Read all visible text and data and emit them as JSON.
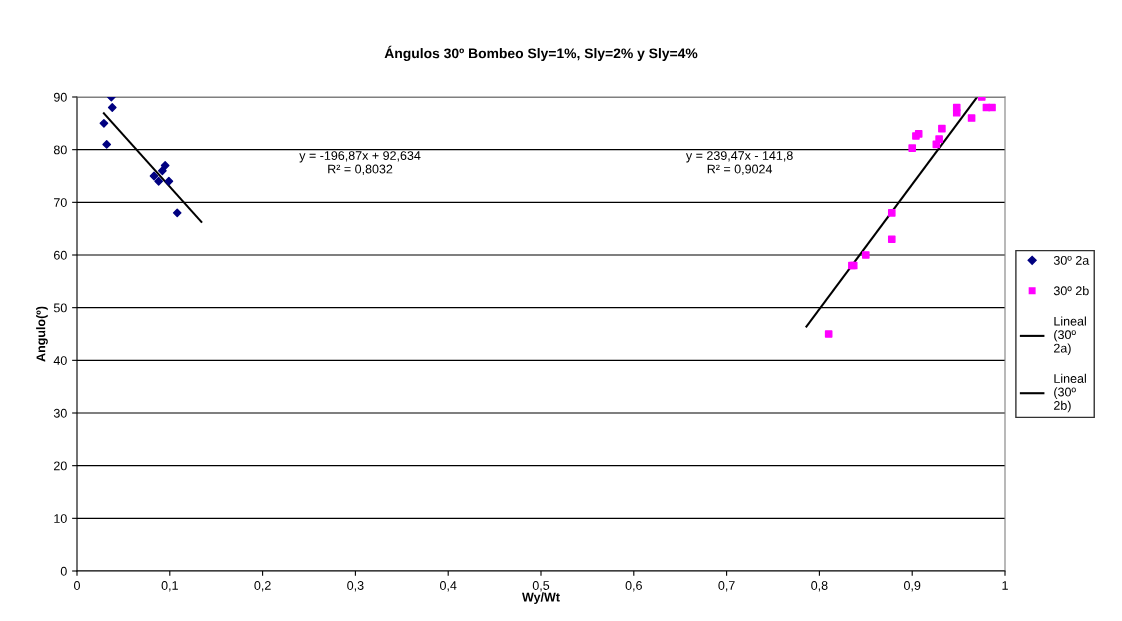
{
  "chart_data": {
    "type": "scatter",
    "title": "Ángulos 30º Bombeo Sly=1%, Sly=2% y Sly=4%",
    "xlabel": "Wy/Wt",
    "ylabel": "Angulo(º)",
    "xlim": [
      0,
      1
    ],
    "xticks": [
      {
        "value": 0,
        "label": "0"
      },
      {
        "value": 0.1,
        "label": "0,1"
      },
      {
        "value": 0.2,
        "label": "0,2"
      },
      {
        "value": 0.3,
        "label": "0,3"
      },
      {
        "value": 0.4,
        "label": "0,4"
      },
      {
        "value": 0.5,
        "label": "0,5"
      },
      {
        "value": 0.6,
        "label": "0,6"
      },
      {
        "value": 0.7,
        "label": "0,7"
      },
      {
        "value": 0.8,
        "label": "0,8"
      },
      {
        "value": 0.9,
        "label": "0,9"
      },
      {
        "value": 1,
        "label": "1"
      }
    ],
    "ylim": [
      0,
      90
    ],
    "yticks": [
      0,
      10,
      20,
      30,
      40,
      50,
      60,
      70,
      80,
      90
    ],
    "grid": "y",
    "legend": "right",
    "series": [
      {
        "name": "30º 2a",
        "marker": "diamond",
        "color": "#000080",
        "x": [
          0.037,
          0.038,
          0.029,
          0.032,
          0.083,
          0.088,
          0.092,
          0.095,
          0.099,
          0.108
        ],
        "values": [
          90,
          88,
          85,
          81,
          75,
          74,
          76,
          77,
          74,
          68
        ]
      },
      {
        "name": "30º 2b",
        "marker": "square",
        "color": "#ff00ff",
        "x": [
          0.975,
          0.98,
          0.986,
          0.948,
          0.948,
          0.964,
          0.932,
          0.904,
          0.907,
          0.929,
          0.926,
          0.9,
          0.878,
          0.878,
          0.85,
          0.835,
          0.837,
          0.81
        ],
        "values": [
          90,
          88,
          88,
          88,
          87,
          86,
          84,
          82.6,
          83,
          82,
          81,
          80.3,
          68,
          63,
          60,
          58,
          58,
          45
        ]
      },
      {
        "name": "Lineal (30º 2a)",
        "type": "line",
        "color": "#000000",
        "x": [
          0.029,
          0.134
        ],
        "values": [
          86.9,
          66.3
        ]
      },
      {
        "name": "Lineal (30º 2b)",
        "type": "line",
        "color": "#000000",
        "x": [
          0.786,
          0.97
        ],
        "values": [
          46.4,
          90
        ]
      }
    ],
    "annotations": [
      "y = -196,87x + 92,634\nR² = 0,8032",
      "y = 239,47x - 141,8\nR² = 0,9024"
    ]
  }
}
